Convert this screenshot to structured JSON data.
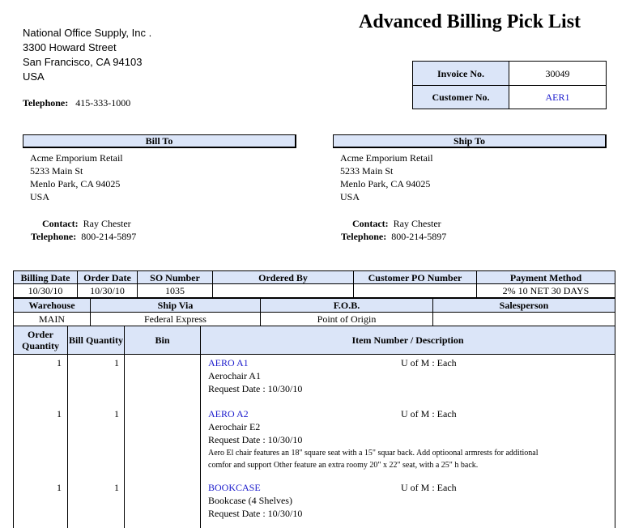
{
  "title": "Advanced Billing Pick List",
  "company": {
    "name": "National Office Supply, Inc .",
    "street": "3300  Howard Street",
    "city": "San Francisco, CA 94103",
    "country": "USA",
    "phone_label": "Telephone:",
    "phone": "415-333-1000"
  },
  "invoice": {
    "invoice_label": "Invoice No.",
    "invoice_no": "30049",
    "customer_label": "Customer No.",
    "customer_no": "AER1"
  },
  "bill_to": {
    "header": "Bill To",
    "name": "Acme Emporium Retail",
    "street": "5233  Main St",
    "city": "Menlo Park, CA  94025",
    "country": "USA",
    "contact_label": "Contact:",
    "contact": "Ray Chester",
    "phone_label": "Telephone:",
    "phone": "800-214-5897"
  },
  "ship_to": {
    "header": "Ship To",
    "name": "Acme Emporium Retail",
    "street": "5233  Main St",
    "city": "Menlo Park, CA  94025",
    "country": "USA",
    "contact_label": "Contact:",
    "contact": "Ray Chester",
    "phone_label": "Telephone:",
    "phone": "800-214-5897"
  },
  "order": {
    "headers": [
      "Billing Date",
      "Order Date",
      "SO Number",
      "Ordered By",
      "Customer PO Number",
      "Payment Method"
    ],
    "values": [
      "10/30/10",
      "10/30/10",
      "1035",
      "",
      "",
      "2% 10 NET 30 DAYS"
    ]
  },
  "shipping": {
    "headers": [
      "Warehouse",
      "Ship Via",
      "F.O.B.",
      "Salesperson"
    ],
    "values": [
      "MAIN",
      "Federal Express",
      "Point of Origin",
      ""
    ]
  },
  "items_header": {
    "order_qty": "Order Quantity",
    "bill_qty": "Bill Quantity",
    "bin": "Bin",
    "item": "Item Number / Description"
  },
  "items": [
    {
      "order_qty": "1",
      "bill_qty": "1",
      "item_no": "AERO A1",
      "uom": "U of M : Each",
      "desc": "Aerochair A1",
      "request": "Request Date : 10/30/10",
      "note": ""
    },
    {
      "order_qty": "1",
      "bill_qty": "1",
      "item_no": "AERO A2",
      "uom": "U of M : Each",
      "desc": "Aerochair E2",
      "request": "Request Date : 10/30/10",
      "note": "Aero El chair features an 18\" square seat with a 15\" squar back.  Add optioonal armrests for additional comfor and support  Other feature an extra roomy 20\" x 22\" seat, with a 25\" h back."
    },
    {
      "order_qty": "1",
      "bill_qty": "1",
      "item_no": "BOOKCASE",
      "uom": "U of M : Each",
      "desc": "Bookcase (4 Shelves)",
      "request": "Request Date : 10/30/10",
      "note": ""
    }
  ]
}
